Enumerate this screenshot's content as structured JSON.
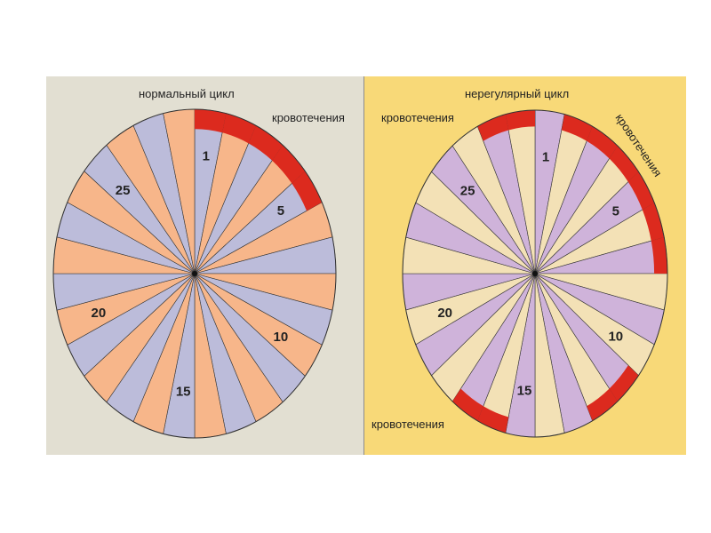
{
  "colors": {
    "left_background": "#e2dfd2",
    "right_background": "#f8d978",
    "left_sector_a": "#bcbcda",
    "left_sector_b": "#f7b68a",
    "right_sector_a": "#cfb3da",
    "right_sector_b": "#f3e1b6",
    "bleeding": "#dc2a1e",
    "line": "#333333"
  },
  "left_panel": {
    "title": "нормальный цикл",
    "bleeding_label": "кровотечения",
    "day_labels": [
      {
        "day": 1,
        "text": "1"
      },
      {
        "day": 5,
        "text": "5"
      },
      {
        "day": 10,
        "text": "10"
      },
      {
        "day": 15,
        "text": "15"
      },
      {
        "day": 20,
        "text": "20"
      },
      {
        "day": 25,
        "text": "25"
      }
    ],
    "bleeding_days": [
      1,
      2,
      3,
      4,
      5
    ]
  },
  "right_panel": {
    "title": "нерегулярный цикл",
    "bleeding_label_top_left": "кровотечения",
    "bleeding_label_top_right": "кровотечения",
    "bleeding_label_bottom": "кровотечения",
    "day_labels": [
      {
        "day": 1,
        "text": "1"
      },
      {
        "day": 5,
        "text": "5"
      },
      {
        "day": 10,
        "text": "10"
      },
      {
        "day": 15,
        "text": "15"
      },
      {
        "day": 20,
        "text": "20"
      },
      {
        "day": 25,
        "text": "25"
      }
    ],
    "bleeding_days": [
      2,
      3,
      4,
      5,
      6,
      7,
      11,
      12,
      16,
      17,
      27,
      28
    ]
  },
  "wheel": {
    "sector_count": 28
  }
}
